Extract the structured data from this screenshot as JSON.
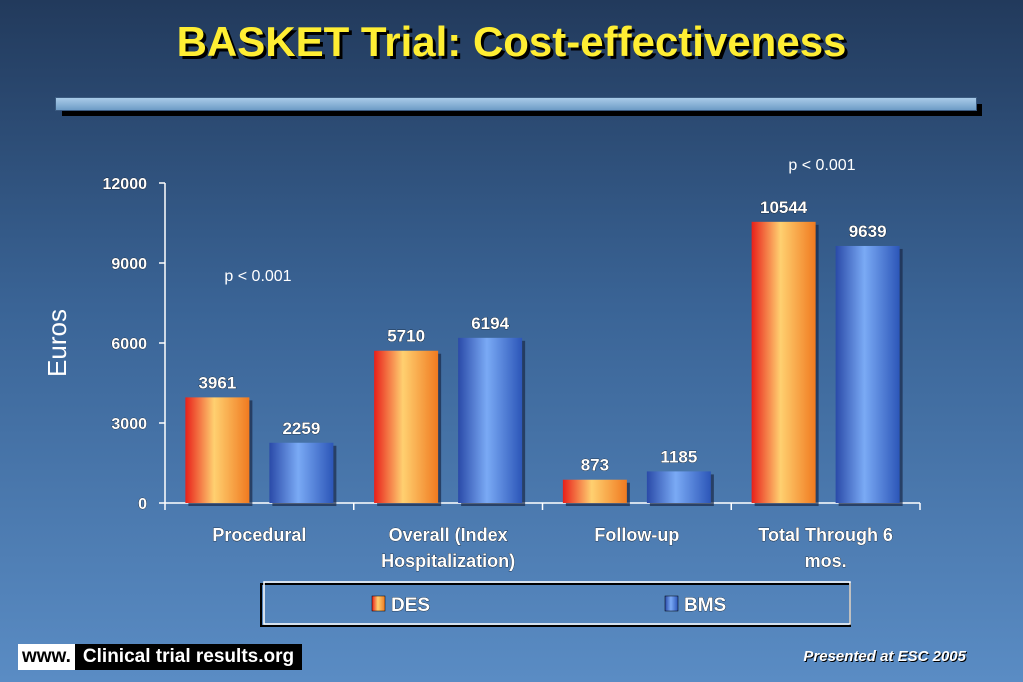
{
  "slide": {
    "title": "BASKET Trial: Cost-effectiveness",
    "footer_www": "www.",
    "footer_site": "Clinical trial results.org",
    "presented": "Presented at ESC 2005"
  },
  "chart_data": {
    "type": "bar",
    "ylabel": "Euros",
    "ylim": [
      0,
      12000
    ],
    "yticks": [
      "0",
      "3000",
      "6000",
      "9000",
      "12000"
    ],
    "categories": [
      "Procedural",
      "Overall (Index Hospitalization)",
      "Follow-up",
      "Total Through 6 mos."
    ],
    "category_lines": [
      [
        "Procedural"
      ],
      [
        "Overall (Index",
        "Hospitalization)"
      ],
      [
        "Follow-up"
      ],
      [
        "Total Through 6",
        "mos."
      ]
    ],
    "series": [
      {
        "name": "DES",
        "values": [
          3961,
          5710,
          873,
          10544
        ],
        "color": "#f2a040"
      },
      {
        "name": "BMS",
        "values": [
          2259,
          6194,
          1185,
          9639
        ],
        "color": "#4a78d8"
      }
    ],
    "annotations": [
      "p < 0.001",
      "p < 0.001"
    ],
    "legend_position": "bottom",
    "grid": false
  }
}
